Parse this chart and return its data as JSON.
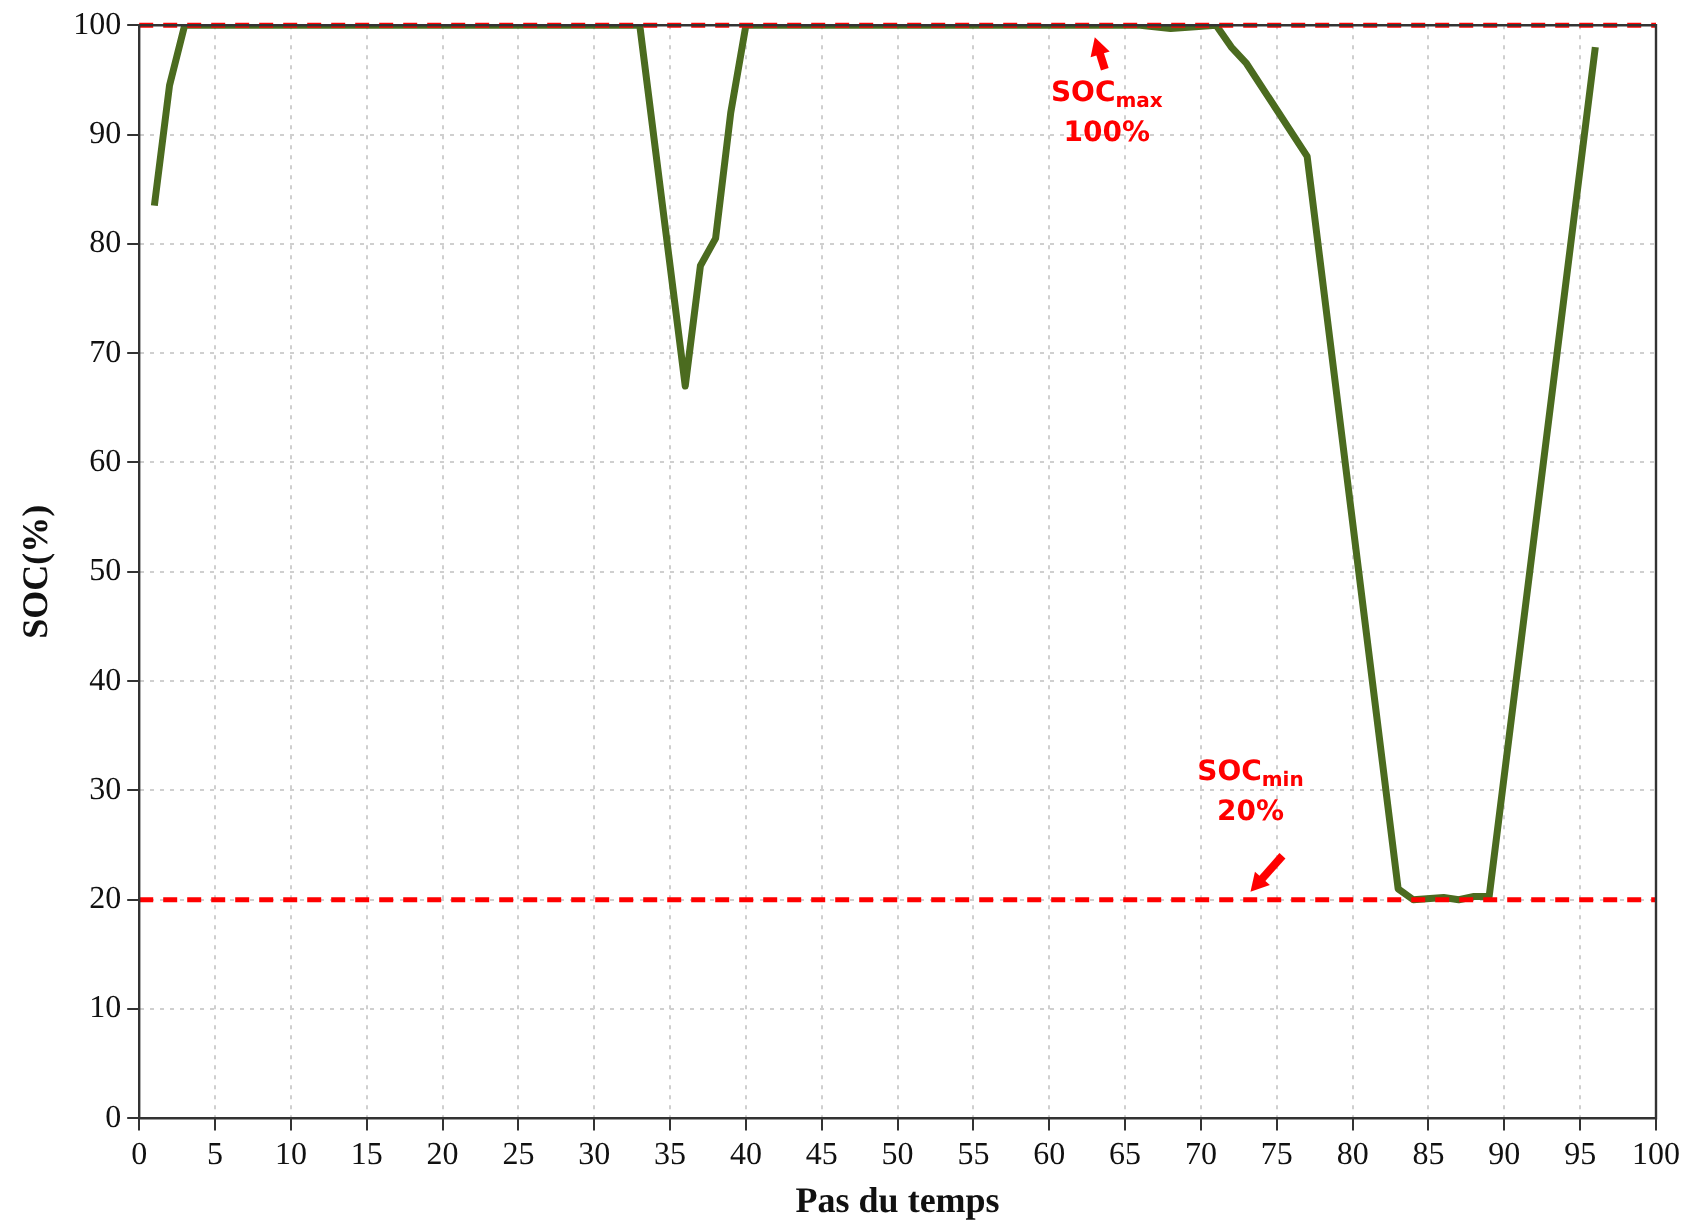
{
  "chart_data": {
    "type": "line",
    "xlabel": "Pas du temps",
    "ylabel": "SOC(%)",
    "x": [
      1,
      2,
      3,
      33,
      36,
      37,
      38,
      39,
      40,
      66,
      68,
      71,
      72,
      73,
      77,
      83,
      84,
      86,
      87,
      88,
      89,
      96
    ],
    "series": [
      {
        "color": "#4b6b1f",
        "values": [
          83.5,
          94.5,
          100,
          100,
          67,
          78,
          80.5,
          92,
          100,
          100,
          99.7,
          100,
          98,
          96.5,
          88,
          21,
          20,
          20.2,
          20,
          20.3,
          20.3,
          98
        ]
      }
    ],
    "xlim": [
      0,
      100
    ],
    "xticks": [
      0,
      5,
      10,
      15,
      20,
      25,
      30,
      35,
      40,
      45,
      50,
      55,
      60,
      65,
      70,
      75,
      80,
      85,
      90,
      95,
      100
    ],
    "ylim": [
      0,
      100
    ],
    "yticks": [
      0,
      10,
      20,
      30,
      40,
      50,
      60,
      70,
      80,
      90,
      100
    ],
    "ref_lines": [
      {
        "axis": "y",
        "value": 100,
        "color": "#ff0000",
        "line_style": "dashed"
      },
      {
        "axis": "y",
        "value": 20,
        "color": "#ff0000",
        "line_style": "dashed"
      }
    ],
    "annotations": [
      {
        "text": "SOC$_{max}$ 100%",
        "x": 63,
        "y": 100
      },
      {
        "text": "SOC$_{min}$ 20%",
        "x": 73,
        "y": 20
      }
    ],
    "grid": true,
    "legend": false,
    "marker": "none",
    "line_style": "solid"
  }
}
